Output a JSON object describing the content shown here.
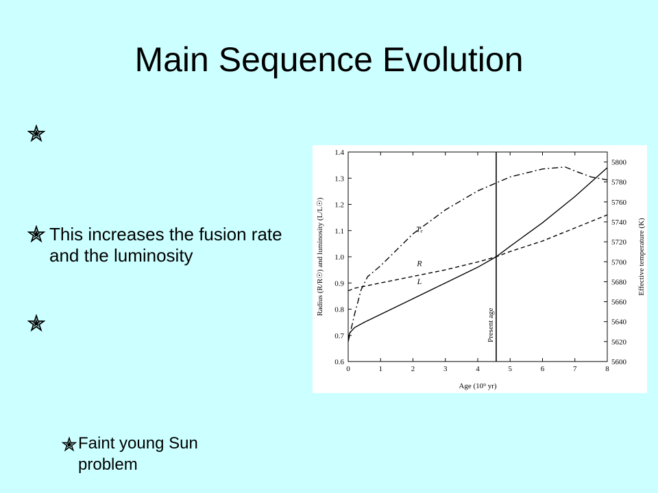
{
  "slide": {
    "title": "Main Sequence Evolution",
    "bullets": [
      {
        "text": ""
      },
      {
        "text": "This increases the fusion rate and the luminosity"
      },
      {
        "text": ""
      }
    ],
    "sub_bullet": "Faint young Sun problem",
    "colors": {
      "background": "#ccffff",
      "chart_background": "#ffffff",
      "text": "#000000"
    },
    "bullet_icon": "star-icon"
  },
  "chart_data": {
    "type": "line",
    "xlabel": "Age (10⁹ yr)",
    "ylabel": "Radius (R/R☉) and luminosity (L/L☉)",
    "y2label": "Effective temperature (K)",
    "xlim": [
      0,
      8
    ],
    "ylim": [
      0.6,
      1.4
    ],
    "y2lim": [
      5600,
      5810
    ],
    "x_ticks": [
      "0",
      "1",
      "2",
      "3",
      "4",
      "5",
      "6",
      "7",
      "8"
    ],
    "y_ticks": [
      "0.6",
      "0.7",
      "0.8",
      "0.9",
      "1.0",
      "1.1",
      "1.2",
      "1.3",
      "1.4"
    ],
    "y2_ticks": [
      "5600",
      "5620",
      "5640",
      "5660",
      "5680",
      "5700",
      "5720",
      "5740",
      "5760",
      "5780",
      "5800"
    ],
    "annotations": [
      {
        "text": "Present age",
        "x": 4.57
      }
    ],
    "series": [
      {
        "name": "L",
        "style": "solid",
        "axis": "left",
        "x": [
          0,
          0.05,
          0.2,
          0.5,
          1,
          2,
          3,
          4,
          4.57,
          5,
          6,
          7,
          8
        ],
        "y": [
          0.69,
          0.71,
          0.73,
          0.75,
          0.78,
          0.84,
          0.9,
          0.96,
          1.0,
          1.04,
          1.13,
          1.23,
          1.34
        ]
      },
      {
        "name": "R",
        "style": "dashed",
        "axis": "left",
        "x": [
          0,
          0.2,
          1,
          2,
          3,
          4,
          4.57,
          5,
          6,
          7,
          8
        ],
        "y": [
          0.87,
          0.88,
          0.9,
          0.925,
          0.95,
          0.98,
          1.0,
          1.02,
          1.06,
          1.11,
          1.16
        ]
      },
      {
        "name": "Tₑ",
        "style": "dashdot",
        "axis": "right",
        "x": [
          0,
          0.2,
          0.4,
          0.6,
          1,
          2,
          3,
          4,
          4.57,
          5,
          6,
          6.7,
          7,
          7.5,
          8
        ],
        "y": [
          5620,
          5648,
          5672,
          5685,
          5696,
          5728,
          5752,
          5771,
          5779,
          5785,
          5793,
          5795,
          5791,
          5785,
          5782
        ]
      }
    ]
  }
}
